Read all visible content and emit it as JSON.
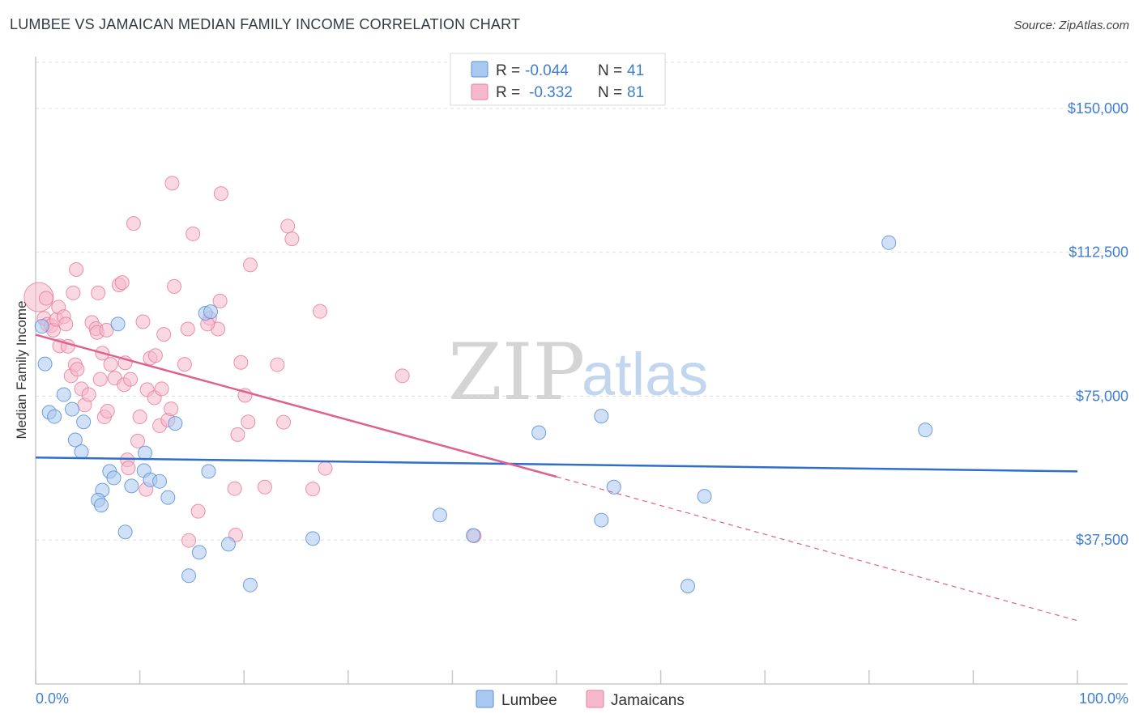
{
  "header": {
    "title": "LUMBEE VS JAMAICAN MEDIAN FAMILY INCOME CORRELATION CHART",
    "source": "Source: ZipAtlas.com"
  },
  "watermark": {
    "zip": "ZIP",
    "atlas": "atlas"
  },
  "legend": {
    "items": [
      {
        "r_label": "R =",
        "r_value": "-0.044",
        "n_label": "N =",
        "n_value": "41",
        "color": "#a9c8f0",
        "stroke": "#5b8fd6"
      },
      {
        "r_label": "R =",
        "r_value": "-0.332",
        "n_label": "N =",
        "n_value": "81",
        "color": "#f6b8cb",
        "stroke": "#e57fa0"
      }
    ]
  },
  "bottom_legend": {
    "series1": "Lumbee",
    "series2": "Jamaicans"
  },
  "chart_data": {
    "type": "scatter",
    "title": "LUMBEE VS JAMAICAN MEDIAN FAMILY INCOME CORRELATION CHART",
    "xlabel": "",
    "ylabel": "Median Family Income",
    "xlim": [
      0,
      100
    ],
    "ylim": [
      0,
      162000
    ],
    "x_tick_labels": [
      "0.0%",
      "100.0%"
    ],
    "y_ticks": [
      37500,
      75000,
      112500,
      150000
    ],
    "y_tick_labels": [
      "$37,500",
      "$75,000",
      "$112,500",
      "$150,000"
    ],
    "grid": true,
    "series": [
      {
        "name": "Lumbee",
        "color": "#5b8fd6",
        "fill": "#a9c8f0",
        "trend": {
          "x0": 0,
          "y0": 59000,
          "x1": 100,
          "y1": 55400
        },
        "points": [
          [
            0.6,
            93200
          ],
          [
            0.9,
            83400
          ],
          [
            1.3,
            70800
          ],
          [
            1.8,
            69700
          ],
          [
            2.7,
            75400
          ],
          [
            3.5,
            71600
          ],
          [
            3.8,
            63600
          ],
          [
            4.4,
            60500
          ],
          [
            4.6,
            68300
          ],
          [
            6.4,
            50500
          ],
          [
            6.0,
            47900
          ],
          [
            6.3,
            46600
          ],
          [
            7.1,
            55400
          ],
          [
            7.5,
            53700
          ],
          [
            7.9,
            93800
          ],
          [
            8.6,
            39600
          ],
          [
            9.2,
            51600
          ],
          [
            10.4,
            55600
          ],
          [
            10.5,
            60200
          ],
          [
            11.0,
            53200
          ],
          [
            11.9,
            52800
          ],
          [
            12.7,
            48600
          ],
          [
            13.4,
            67900
          ],
          [
            14.7,
            28200
          ],
          [
            15.7,
            34300
          ],
          [
            16.3,
            96600
          ],
          [
            16.6,
            55400
          ],
          [
            18.5,
            36400
          ],
          [
            20.6,
            25800
          ],
          [
            26.6,
            37900
          ],
          [
            38.8,
            44000
          ],
          [
            42.0,
            38700
          ],
          [
            48.3,
            65500
          ],
          [
            54.3,
            42700
          ],
          [
            54.3,
            69800
          ],
          [
            55.5,
            51300
          ],
          [
            62.6,
            25500
          ],
          [
            64.2,
            48900
          ],
          [
            81.9,
            115000
          ],
          [
            85.4,
            66200
          ],
          [
            16.8,
            97000
          ]
        ]
      },
      {
        "name": "Jamaicans",
        "color": "#e57fa0",
        "fill": "#f6b8cb",
        "trend": {
          "x0": 0,
          "y0": 91000,
          "x1": 50,
          "y1": 54000,
          "dash_x1": 100,
          "dash_y1": 16500
        },
        "points": [
          [
            0.3,
            100800
          ],
          [
            0.8,
            95300
          ],
          [
            1.1,
            93700
          ],
          [
            1.5,
            93400
          ],
          [
            1.7,
            92200
          ],
          [
            2.0,
            95000
          ],
          [
            2.2,
            98200
          ],
          [
            2.3,
            88100
          ],
          [
            2.7,
            95700
          ],
          [
            2.9,
            93800
          ],
          [
            3.1,
            88000
          ],
          [
            3.4,
            80300
          ],
          [
            3.6,
            101900
          ],
          [
            3.8,
            83200
          ],
          [
            4.0,
            82000
          ],
          [
            4.4,
            76900
          ],
          [
            4.7,
            72700
          ],
          [
            5.1,
            75400
          ],
          [
            5.4,
            94200
          ],
          [
            5.8,
            92600
          ],
          [
            5.9,
            91600
          ],
          [
            6.0,
            101900
          ],
          [
            6.2,
            79400
          ],
          [
            6.4,
            86200
          ],
          [
            6.6,
            69600
          ],
          [
            6.8,
            92200
          ],
          [
            6.9,
            71100
          ],
          [
            7.2,
            83300
          ],
          [
            7.6,
            79700
          ],
          [
            8.0,
            104000
          ],
          [
            8.3,
            104600
          ],
          [
            8.5,
            78000
          ],
          [
            8.6,
            83700
          ],
          [
            8.8,
            58400
          ],
          [
            8.9,
            56300
          ],
          [
            9.1,
            79400
          ],
          [
            9.4,
            120000
          ],
          [
            9.8,
            63300
          ],
          [
            10.0,
            69600
          ],
          [
            10.3,
            94400
          ],
          [
            10.6,
            50700
          ],
          [
            10.7,
            76700
          ],
          [
            11.0,
            84900
          ],
          [
            11.4,
            74600
          ],
          [
            11.5,
            85600
          ],
          [
            11.9,
            67300
          ],
          [
            12.1,
            76900
          ],
          [
            12.3,
            91100
          ],
          [
            12.7,
            68800
          ],
          [
            13.0,
            71700
          ],
          [
            13.1,
            130500
          ],
          [
            13.3,
            103600
          ],
          [
            14.3,
            83300
          ],
          [
            14.6,
            92500
          ],
          [
            14.7,
            37400
          ],
          [
            15.1,
            117300
          ],
          [
            15.6,
            45000
          ],
          [
            16.7,
            95300
          ],
          [
            17.5,
            92500
          ],
          [
            17.7,
            99800
          ],
          [
            17.8,
            127800
          ],
          [
            19.1,
            50900
          ],
          [
            19.4,
            65000
          ],
          [
            19.2,
            38800
          ],
          [
            19.7,
            83800
          ],
          [
            20.1,
            75200
          ],
          [
            20.4,
            68300
          ],
          [
            20.6,
            109200
          ],
          [
            22.0,
            51300
          ],
          [
            23.2,
            83200
          ],
          [
            23.8,
            68200
          ],
          [
            24.2,
            119300
          ],
          [
            26.6,
            50800
          ],
          [
            27.3,
            97100
          ],
          [
            27.8,
            56200
          ],
          [
            35.2,
            80300
          ],
          [
            42.1,
            38600
          ],
          [
            16.5,
            93800
          ],
          [
            3.9,
            108000
          ],
          [
            24.6,
            116000
          ],
          [
            1.0,
            100500
          ]
        ]
      }
    ]
  }
}
